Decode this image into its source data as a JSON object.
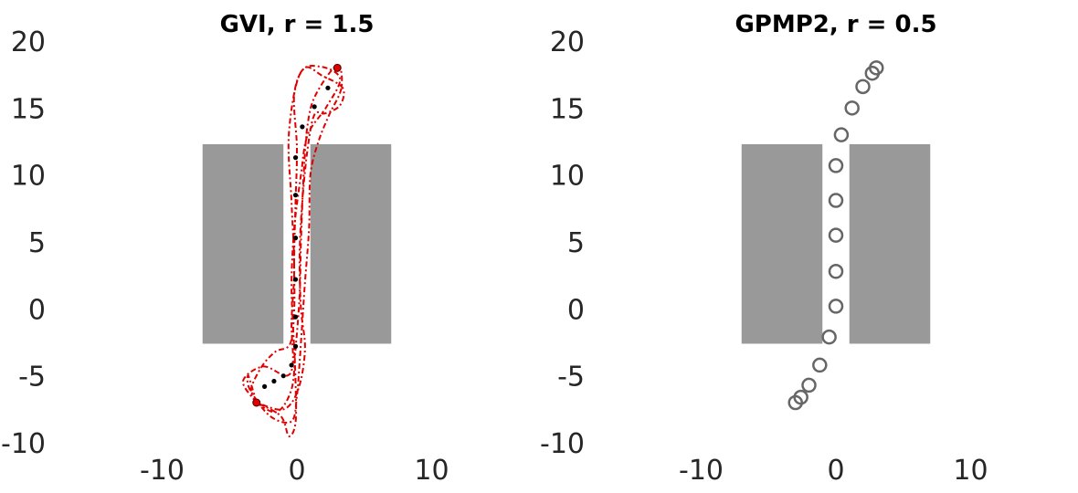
{
  "chart_data": [
    {
      "type": "scatter",
      "title": "GVI, r = 1.5",
      "xlabel": "",
      "ylabel": "",
      "xlim": [
        -20,
        20
      ],
      "ylim": [
        -10,
        20
      ],
      "xticks": [
        -10,
        0,
        10
      ],
      "yticks": [
        -10,
        -5,
        0,
        5,
        10,
        15,
        20
      ],
      "grid": false,
      "obstacles": [
        {
          "x0": -7,
          "x1": -1,
          "y0": -2.6,
          "y1": 12.3
        },
        {
          "x0": 1,
          "x1": 7,
          "y0": -2.6,
          "y1": 12.3
        }
      ],
      "series": [
        {
          "marker": "dot",
          "color": "#000000",
          "x": [
            -3.0,
            -2.4,
            -1.7,
            -1.0,
            -0.4,
            -0.1,
            -0.1,
            -0.1,
            -0.1,
            -0.1,
            -0.1,
            0.4,
            1.3,
            2.3,
            3.0
          ],
          "y": [
            -7.0,
            -5.8,
            -5.4,
            -5.0,
            -4.2,
            -2.8,
            -0.6,
            2.2,
            5.3,
            8.5,
            11.3,
            13.6,
            15.1,
            16.5,
            18.0
          ]
        },
        {
          "marker": "dashed-line",
          "color": "#e00000",
          "x": [
            -3.0,
            -4.0,
            -2.5,
            -0.8,
            -0.3,
            -0.4,
            -0.2,
            -0.4,
            -0.6,
            0.2,
            1.7,
            3.2,
            2.2,
            0.8,
            0.3,
            -0.2,
            -0.4,
            -0.3,
            -0.2,
            -0.1,
            -0.1,
            -0.6,
            -1.2,
            -3.0
          ],
          "y": [
            -7.0,
            -5.4,
            -4.3,
            -5.0,
            -4.0,
            -1.0,
            3.0,
            8.0,
            13.0,
            17.5,
            18.1,
            17.2,
            15.1,
            13.0,
            10.0,
            6.0,
            2.0,
            -1.0,
            -3.0,
            -5.5,
            -8.5,
            -9.5,
            -8.0,
            -7.0
          ]
        },
        {
          "marker": "dashed-line",
          "color": "#e00000",
          "x": [
            -3.0,
            -1.5,
            -0.4,
            -0.1,
            0.2,
            0.3,
            0.5,
            0.8,
            1.4,
            3.0,
            3.3,
            2.4,
            1.6,
            1.0,
            0.9,
            0.6,
            0.4,
            0.2,
            0.0,
            -0.4,
            -2.0,
            -3.5,
            -3.6,
            -3.0
          ],
          "y": [
            -7.0,
            -7.7,
            -6.0,
            -3.0,
            1.0,
            5.0,
            10.0,
            13.8,
            16.0,
            18.2,
            16.5,
            14.5,
            12.5,
            10.0,
            6.0,
            2.0,
            -1.0,
            -4.0,
            -6.5,
            -8.4,
            -8.0,
            -6.0,
            -5.0,
            -7.0
          ]
        },
        {
          "marker": "dashed-line",
          "color": "#e00000",
          "x": [
            -3.0,
            -3.4,
            -2.6,
            -1.6,
            -0.5,
            -0.2,
            -0.2,
            -0.1,
            0.0,
            -0.2,
            0.6,
            1.9,
            3.4,
            3.2,
            2.1,
            1.3,
            0.8,
            0.4,
            0.2,
            0.3,
            0.6,
            0.1,
            -1.0,
            -3.0
          ],
          "y": [
            -7.0,
            -6.0,
            -4.3,
            -3.2,
            -2.6,
            0.0,
            4.0,
            8.0,
            12.0,
            16.0,
            18.0,
            17.4,
            16.5,
            15.2,
            14.6,
            14.5,
            12.0,
            8.0,
            4.0,
            0.0,
            -3.0,
            -6.0,
            -7.5,
            -7.0
          ]
        },
        {
          "marker": "filled-circle",
          "color": "#e00000",
          "x": [
            -3.0,
            3.0
          ],
          "y": [
            -7.0,
            18.0
          ]
        }
      ]
    },
    {
      "type": "scatter",
      "title": "GPMP2, r = 0.5",
      "xlabel": "",
      "ylabel": "",
      "xlim": [
        -20,
        20
      ],
      "ylim": [
        -10,
        20
      ],
      "xticks": [
        -10,
        0,
        10
      ],
      "yticks": [
        -10,
        -5,
        0,
        5,
        10,
        15,
        20
      ],
      "grid": false,
      "obstacles": [
        {
          "x0": -7,
          "x1": -1,
          "y0": -2.6,
          "y1": 12.3
        },
        {
          "x0": 1,
          "x1": 7,
          "y0": -2.6,
          "y1": 12.3
        }
      ],
      "series": [
        {
          "marker": "open-circle",
          "color": "#666666",
          "x": [
            -3.0,
            -2.6,
            -2.0,
            -1.2,
            -0.5,
            0.0,
            0.0,
            0.0,
            0.0,
            0.0,
            0.4,
            1.2,
            2.0,
            2.7,
            3.0
          ],
          "y": [
            -7.0,
            -6.6,
            -5.7,
            -4.2,
            -2.1,
            0.2,
            2.8,
            5.5,
            8.1,
            10.7,
            13.0,
            15.0,
            16.6,
            17.6,
            18.0
          ]
        }
      ]
    }
  ]
}
